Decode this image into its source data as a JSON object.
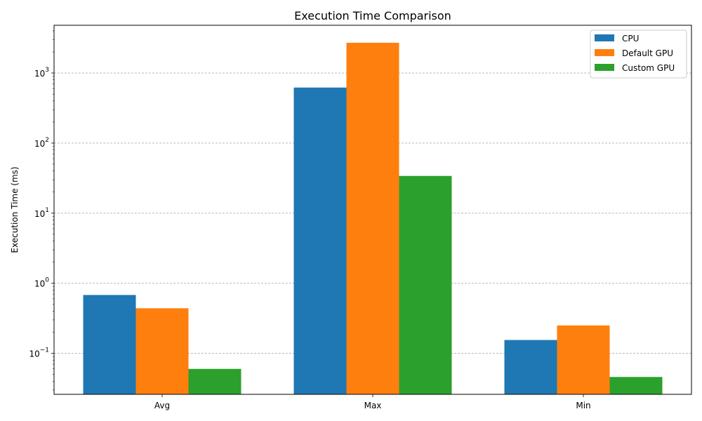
{
  "chart_data": {
    "type": "bar",
    "title": "Execution Time Comparison",
    "xlabel": "",
    "ylabel": "Execution Time (ms)",
    "yscale": "log",
    "ylim": [
      0.026,
      4800
    ],
    "categories": [
      "Avg",
      "Max",
      "Min"
    ],
    "series": [
      {
        "name": "CPU",
        "color": "#1f77b4",
        "values": [
          0.68,
          620,
          0.155
        ]
      },
      {
        "name": "Default GPU",
        "color": "#ff7f0e",
        "values": [
          0.44,
          2700,
          0.25
        ]
      },
      {
        "name": "Custom GPU",
        "color": "#2ca02c",
        "values": [
          0.06,
          34,
          0.046
        ]
      }
    ],
    "y_ticks": [
      {
        "base": "10",
        "exp": "−1",
        "value": 0.1
      },
      {
        "base": "10",
        "exp": "0",
        "value": 1
      },
      {
        "base": "10",
        "exp": "1",
        "value": 10
      },
      {
        "base": "10",
        "exp": "2",
        "value": 100
      },
      {
        "base": "10",
        "exp": "3",
        "value": 1000
      }
    ],
    "grid": "y-major-dashed",
    "legend_position": "top-right"
  }
}
